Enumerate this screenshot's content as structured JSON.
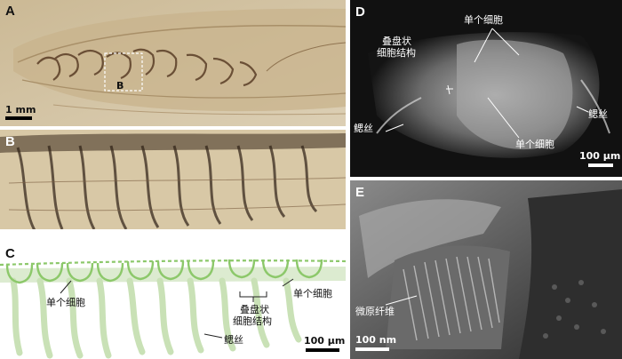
{
  "panels": {
    "A": {
      "label": "A",
      "scale": "1 mm",
      "inset_label": "B"
    },
    "B": {
      "label": "B"
    },
    "C": {
      "label": "C",
      "single_cell_a": "单个细胞",
      "single_cell_b": "单个细胞",
      "stacked_line1": "叠盘状",
      "stacked_line2": "细胞结构",
      "gill": "鳃丝",
      "scale": "100 μm"
    },
    "D": {
      "label": "D",
      "single_cell_top": "单个细胞",
      "stacked_line1": "叠盘状",
      "stacked_line2": "细胞结构",
      "gill_left": "鳃丝",
      "gill_right": "鳃丝",
      "single_cell_bottom": "单个细胞",
      "scale": "100 μm"
    },
    "E": {
      "label": "E",
      "fibril": "微原纤维",
      "scale": "100 nm"
    }
  },
  "colors": {
    "fossil_bg": "#d6c4a3",
    "fossil_dark": "#6b4a2f",
    "sem_bg": "#1a1a1a",
    "diagram_green": "#8cc86a",
    "diagram_light": "#d5e8c5"
  }
}
